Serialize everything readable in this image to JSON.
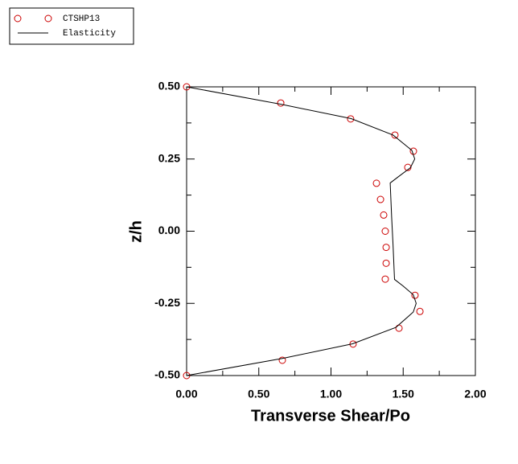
{
  "chart_data": {
    "type": "scatter-line",
    "x_label": "Transverse Shear/Po",
    "y_label": "z/h",
    "xlim": [
      0,
      2
    ],
    "ylim": [
      -0.5,
      0.5
    ],
    "xticks": [
      {
        "value": 0,
        "label": "0.00"
      },
      {
        "value": 0.5,
        "label": "0.50"
      },
      {
        "value": 1,
        "label": "1.00"
      },
      {
        "value": 1.5,
        "label": "1.50"
      },
      {
        "value": 2,
        "label": "2.00"
      }
    ],
    "yticks": [
      {
        "value": 0.5,
        "label": "0.50"
      },
      {
        "value": 0.25,
        "label": "0.25"
      },
      {
        "value": 0,
        "label": "0.00"
      },
      {
        "value": -0.25,
        "label": "-0.25"
      },
      {
        "value": -0.5,
        "label": "-0.50"
      }
    ],
    "xminorticks": [
      0.25,
      0.75,
      1.25,
      1.75
    ],
    "yminorticks": [
      0.375,
      0.125,
      -0.125,
      -0.375
    ],
    "series": [
      {
        "name": "CTSHP13",
        "kind": "markers",
        "color": "#cc0000",
        "x": [
          0,
          0.652,
          1.136,
          1.443,
          1.571,
          1.532,
          1.315,
          1.343,
          1.365,
          1.376,
          1.382,
          1.382,
          1.376,
          1.582,
          1.616,
          1.471,
          1.153,
          0.663,
          0
        ],
        "y": [
          0.5,
          0.444,
          0.389,
          0.333,
          0.277,
          0.221,
          0.166,
          0.11,
          0.056,
          0,
          -0.056,
          -0.111,
          -0.166,
          -0.222,
          -0.278,
          -0.336,
          -0.391,
          -0.447,
          -0.5
        ]
      },
      {
        "name": "Elasticity",
        "kind": "line",
        "color": "#000000",
        "x": [
          0,
          0.65,
          1.14,
          1.43,
          1.56,
          1.58,
          1.55,
          1.47,
          1.41,
          1.42,
          1.43,
          1.44,
          1.5,
          1.57,
          1.59,
          1.57,
          1.45,
          1.15,
          0.67,
          0
        ],
        "y": [
          0.5,
          0.44,
          0.39,
          0.333,
          0.28,
          0.25,
          0.22,
          0.19,
          0.167,
          0.05,
          -0.05,
          -0.167,
          -0.19,
          -0.22,
          -0.25,
          -0.28,
          -0.333,
          -0.39,
          -0.44,
          -0.5
        ]
      }
    ]
  }
}
